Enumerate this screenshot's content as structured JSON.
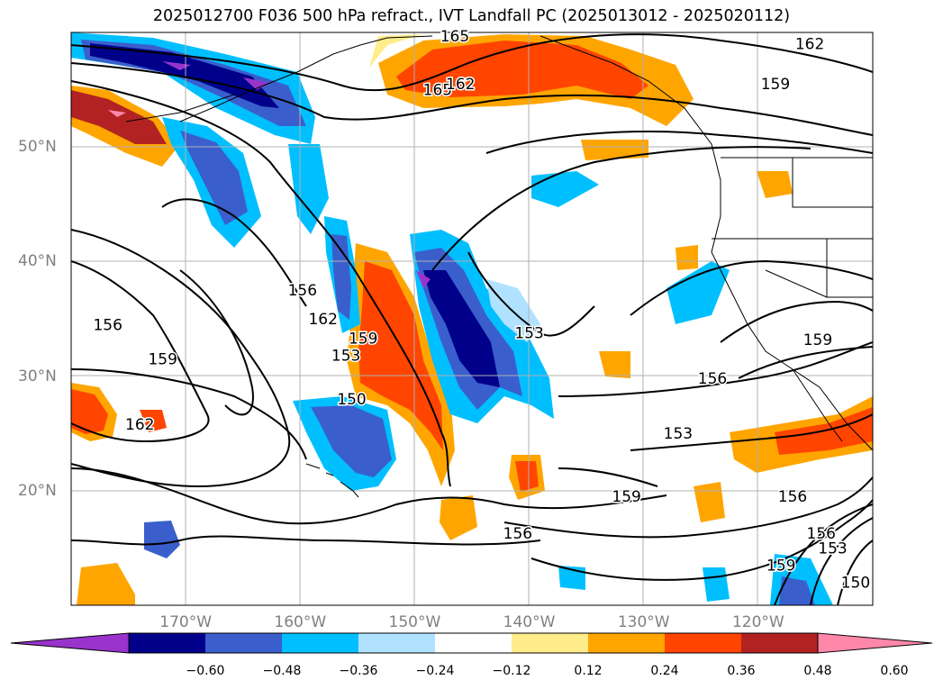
{
  "title": "2025012700 F036 500 hPa refract., IVT Landfall PC (2025013012 - 2025020112)",
  "map": {
    "lon_range": [
      -180,
      -110
    ],
    "lat_range": [
      10,
      60
    ],
    "lon_ticks": [
      {
        "value": -170,
        "label": "170°W"
      },
      {
        "value": -160,
        "label": "160°W"
      },
      {
        "value": -150,
        "label": "150°W"
      },
      {
        "value": -140,
        "label": "140°W"
      },
      {
        "value": -130,
        "label": "130°W"
      },
      {
        "value": -120,
        "label": "120°W"
      }
    ],
    "lat_ticks": [
      {
        "value": 50,
        "label": "50°N"
      },
      {
        "value": 40,
        "label": "40°N"
      },
      {
        "value": 30,
        "label": "30°N"
      },
      {
        "value": 20,
        "label": "20°N"
      }
    ],
    "contour_labels": [
      {
        "text": "165",
        "lon": -148.0,
        "lat": 55.0
      },
      {
        "text": "162",
        "lon": -146.0,
        "lat": 55.5
      },
      {
        "text": "162",
        "lon": -115.5,
        "lat": 59.0
      },
      {
        "text": "159",
        "lon": -118.5,
        "lat": 55.5
      },
      {
        "text": "165",
        "lon": -146.5,
        "lat": 59.7
      },
      {
        "text": "156",
        "lon": -159.8,
        "lat": 37.5
      },
      {
        "text": "162",
        "lon": -158.0,
        "lat": 35.0
      },
      {
        "text": "159",
        "lon": -154.5,
        "lat": 33.3
      },
      {
        "text": "153",
        "lon": -156.0,
        "lat": 31.8
      },
      {
        "text": "159",
        "lon": -172.0,
        "lat": 31.5
      },
      {
        "text": "150",
        "lon": -155.5,
        "lat": 28.0
      },
      {
        "text": "156",
        "lon": -176.8,
        "lat": 34.5
      },
      {
        "text": "162",
        "lon": -174.0,
        "lat": 25.8
      },
      {
        "text": "153",
        "lon": -140.0,
        "lat": 33.8
      },
      {
        "text": "153",
        "lon": -127.0,
        "lat": 25.0
      },
      {
        "text": "156",
        "lon": -124.0,
        "lat": 29.8
      },
      {
        "text": "159",
        "lon": -114.8,
        "lat": 33.2
      },
      {
        "text": "159",
        "lon": -131.5,
        "lat": 19.5
      },
      {
        "text": "156",
        "lon": -141.0,
        "lat": 16.3
      },
      {
        "text": "156",
        "lon": -117.0,
        "lat": 19.5
      },
      {
        "text": "156",
        "lon": -114.5,
        "lat": 16.3
      },
      {
        "text": "153",
        "lon": -113.5,
        "lat": 15.0
      },
      {
        "text": "159",
        "lon": -118.0,
        "lat": 13.5
      },
      {
        "text": "150",
        "lon": -111.5,
        "lat": 12.0
      }
    ]
  },
  "colorbar": {
    "colors": [
      "#9933cc",
      "#00008b",
      "#3a5fcd",
      "#00bfff",
      "#b0e2ff",
      "#ffffff",
      "#ffec8b",
      "#ffa500",
      "#ff4500",
      "#b22222",
      "#ff88aa"
    ],
    "tick_labels": [
      "−0.60",
      "−0.48",
      "−0.36",
      "−0.24",
      "−0.12",
      "0.12",
      "0.24",
      "0.36",
      "0.48",
      "0.60"
    ]
  },
  "colors": {
    "axis_label": "#808080",
    "grid": "#b0b0b0",
    "contour": "#000000"
  }
}
